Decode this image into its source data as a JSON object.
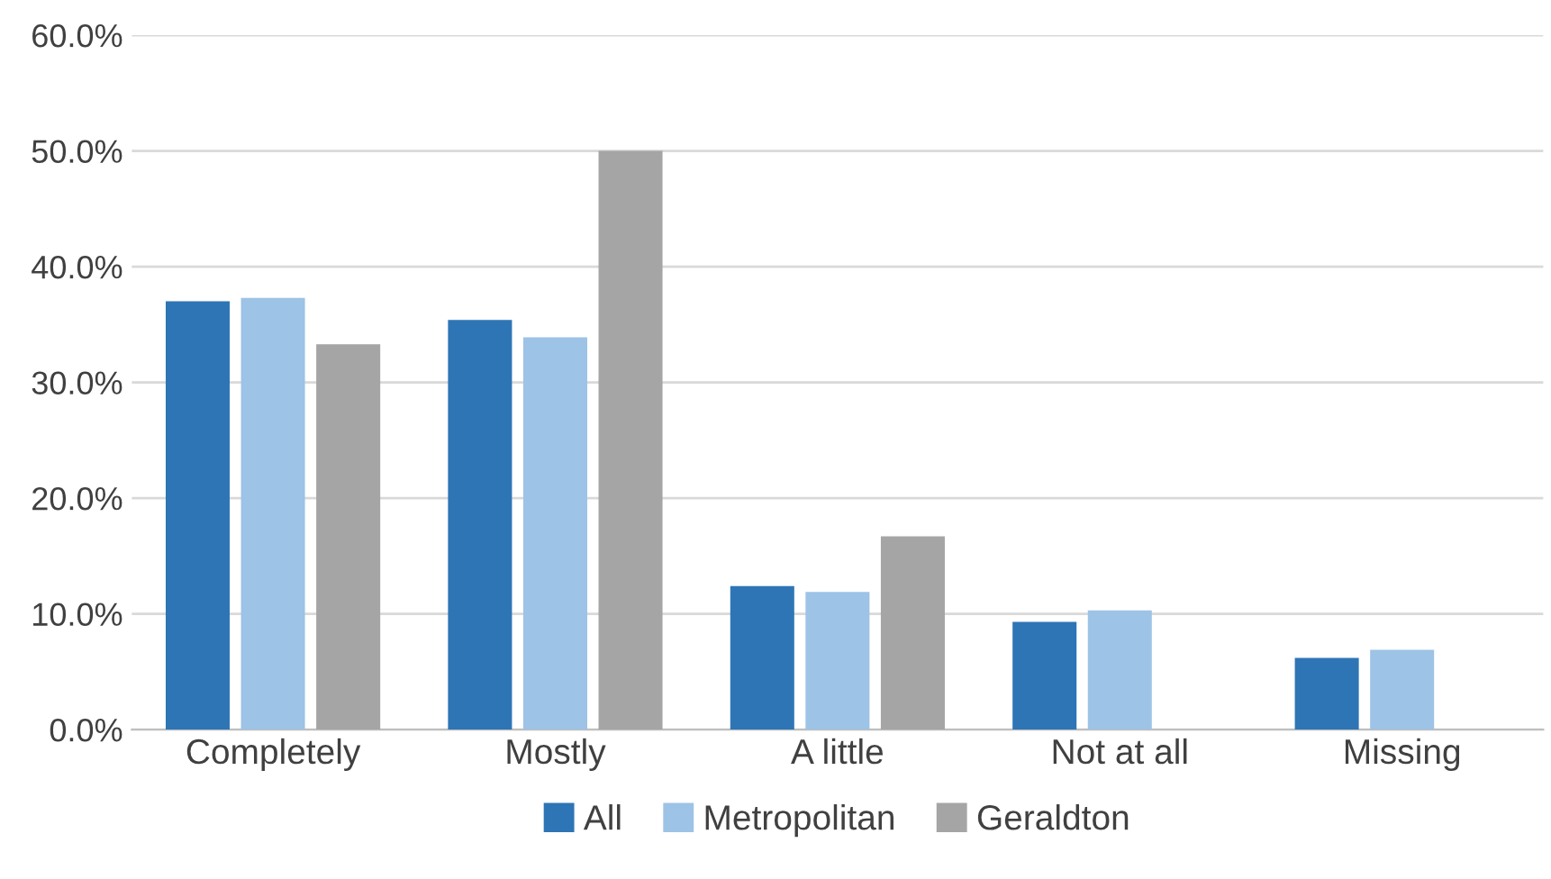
{
  "chart_data": {
    "type": "bar",
    "categories": [
      "Completely",
      "Mostly",
      "A little",
      "Not at all",
      "Missing"
    ],
    "series": [
      {
        "name": "All",
        "color": "#2e75b6",
        "values": [
          37.0,
          35.4,
          12.4,
          9.3,
          6.2
        ]
      },
      {
        "name": "Metropolitan",
        "color": "#9dc3e6",
        "values": [
          37.3,
          33.9,
          11.9,
          10.3,
          6.9
        ]
      },
      {
        "name": "Geraldton",
        "color": "#a5a5a5",
        "values": [
          33.3,
          50.0,
          16.7,
          null,
          null
        ]
      }
    ],
    "ylim": [
      0,
      60
    ],
    "yticks": [
      {
        "value": 0,
        "label": "0.0%"
      },
      {
        "value": 10,
        "label": "10.0%"
      },
      {
        "value": 20,
        "label": "20.0%"
      },
      {
        "value": 30,
        "label": "30.0%"
      },
      {
        "value": 40,
        "label": "40.0%"
      },
      {
        "value": 50,
        "label": "50.0%"
      },
      {
        "value": 60,
        "label": "60.0%"
      }
    ],
    "grid": "y",
    "legend": "bottom"
  }
}
